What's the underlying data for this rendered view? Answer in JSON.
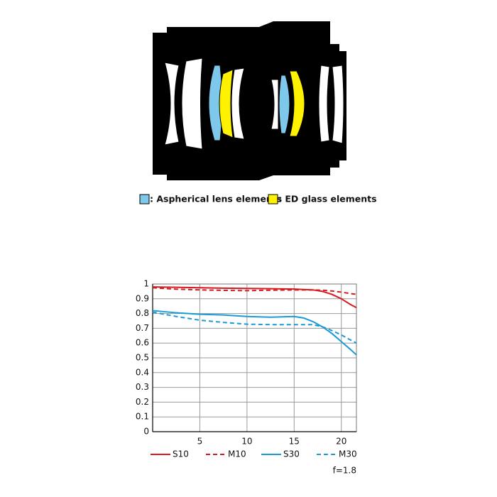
{
  "diagram": {
    "legend": [
      {
        "label": ": Aspherical lens elements",
        "color": "#7ec8ec"
      },
      {
        "label": ": ED glass elements",
        "color": "#fff200"
      }
    ]
  },
  "chart_data": {
    "type": "line",
    "x": [
      0,
      2.5,
      5,
      7.5,
      10,
      12.5,
      15,
      16,
      17,
      18,
      19,
      20,
      21,
      21.6
    ],
    "series": [
      {
        "name": "S10",
        "color": "#d7191f",
        "style": "solid",
        "values": [
          0.98,
          0.978,
          0.975,
          0.972,
          0.97,
          0.968,
          0.966,
          0.963,
          0.96,
          0.95,
          0.93,
          0.9,
          0.86,
          0.84
        ]
      },
      {
        "name": "M10",
        "color": "#d7191f",
        "style": "dashed",
        "values": [
          0.975,
          0.965,
          0.96,
          0.957,
          0.955,
          0.958,
          0.96,
          0.96,
          0.96,
          0.958,
          0.953,
          0.945,
          0.935,
          0.93
        ]
      },
      {
        "name": "S30",
        "color": "#1a9ad6",
        "style": "solid",
        "values": [
          0.82,
          0.805,
          0.795,
          0.79,
          0.78,
          0.775,
          0.78,
          0.77,
          0.745,
          0.71,
          0.665,
          0.61,
          0.555,
          0.52
        ]
      },
      {
        "name": "M30",
        "color": "#1a9ad6",
        "style": "dashed",
        "values": [
          0.81,
          0.78,
          0.755,
          0.74,
          0.728,
          0.725,
          0.725,
          0.725,
          0.725,
          0.71,
          0.685,
          0.655,
          0.62,
          0.6
        ]
      }
    ],
    "xlim": [
      0,
      21.6
    ],
    "ylim": [
      0,
      1
    ],
    "xticks": [
      5,
      10,
      15,
      20
    ],
    "yticks": [
      0,
      0.1,
      0.2,
      0.3,
      0.4,
      0.5,
      0.6,
      0.7,
      0.8,
      0.9,
      1
    ],
    "grid": true,
    "annotation": "f=1.8"
  }
}
